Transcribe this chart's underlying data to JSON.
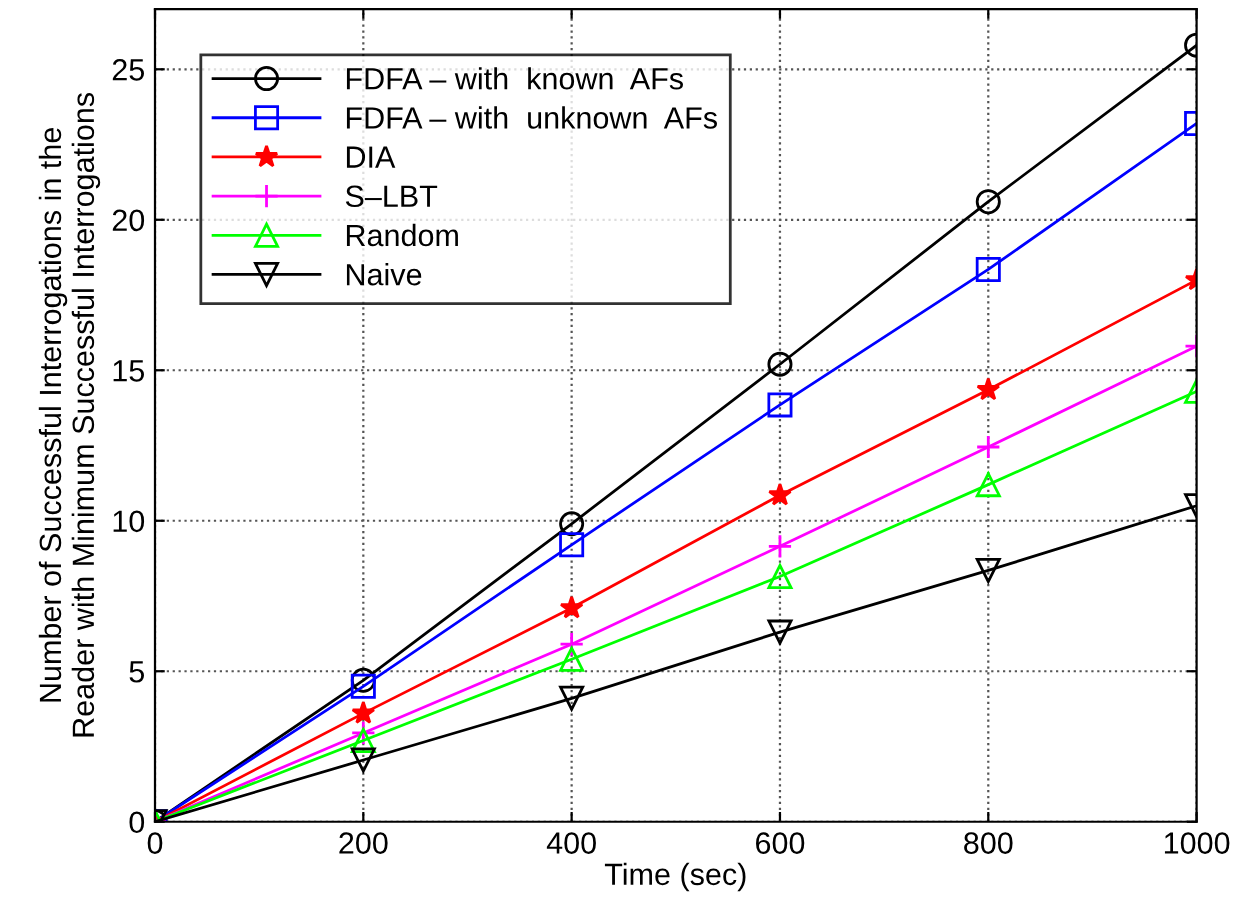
{
  "chart_data": {
    "type": "line",
    "xlabel": "Time (sec)",
    "ylabel": "Number of Successful Interrogations in the\nReader with Minimum Successful Interrogations",
    "x": [
      0,
      200,
      400,
      600,
      800,
      1000
    ],
    "series": [
      {
        "name": "FDFA – with  known  AFs",
        "color": "#000000",
        "marker": "circle",
        "values": [
          0,
          4.7,
          9.9,
          15.2,
          20.6,
          25.8
        ]
      },
      {
        "name": "FDFA – with  unknown  AFs",
        "color": "#0000ff",
        "marker": "square",
        "values": [
          0,
          4.5,
          9.2,
          13.85,
          18.35,
          23.2
        ]
      },
      {
        "name": "DIA",
        "color": "#ff0000",
        "marker": "star",
        "values": [
          0,
          3.6,
          7.1,
          10.85,
          14.35,
          18.0
        ]
      },
      {
        "name": "S–LBT",
        "color": "#ff00ff",
        "marker": "cross",
        "values": [
          0,
          2.95,
          5.9,
          9.15,
          12.45,
          15.8
        ]
      },
      {
        "name": "Random",
        "color": "#00ff00",
        "marker": "triangle",
        "values": [
          0,
          2.7,
          5.4,
          8.15,
          11.2,
          14.3
        ]
      },
      {
        "name": "Naive",
        "color": "#000000",
        "marker": "triangle_down",
        "values": [
          0,
          2.05,
          4.1,
          6.3,
          8.35,
          10.5
        ]
      }
    ],
    "xlim": [
      0,
      1000
    ],
    "xticks": [
      0,
      200,
      400,
      600,
      800,
      1000
    ],
    "ylim": [
      0,
      27
    ],
    "yticks": [
      0,
      5,
      10,
      15,
      20,
      25
    ],
    "grid": true,
    "legend": "top left",
    "line_style": "solid"
  }
}
